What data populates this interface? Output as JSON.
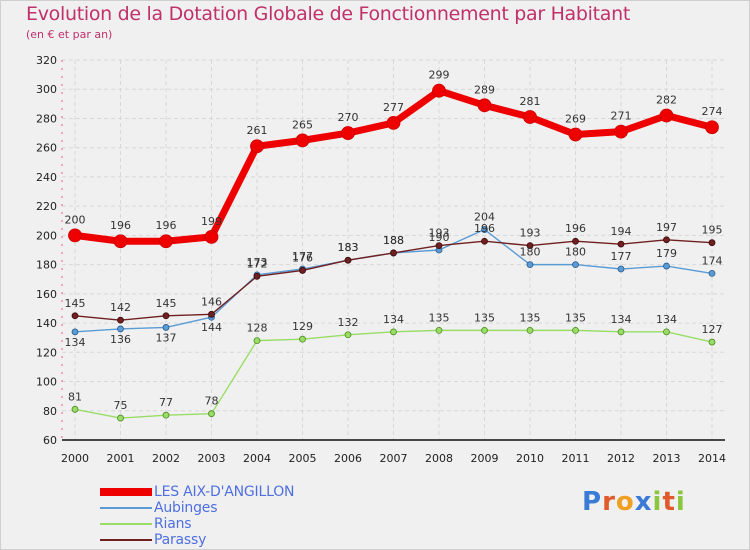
{
  "title": "Evolution de la Dotation Globale de Fonctionnement par Habitant",
  "subtitle": "(en € et par an)",
  "logo": "Proxiti",
  "chart_data": {
    "type": "line",
    "title": "Evolution de la Dotation Globale de Fonctionnement par Habitant",
    "subtitle": "(en € et par an)",
    "x": [
      "2000",
      "2001",
      "2002",
      "2003",
      "2004",
      "2005",
      "2006",
      "2007",
      "2008",
      "2009",
      "2010",
      "2011",
      "2012",
      "2013",
      "2014"
    ],
    "ylim": [
      60,
      320
    ],
    "yticks": [
      60,
      80,
      100,
      120,
      140,
      160,
      180,
      200,
      220,
      240,
      260,
      280,
      300,
      320
    ],
    "grid": true,
    "legend_position": "bottom-left",
    "series": [
      {
        "name": "LES AIX-D'ANGILLON",
        "color": "#ee0000",
        "values": [
          200,
          196,
          196,
          199,
          261,
          265,
          270,
          277,
          299,
          289,
          281,
          269,
          271,
          282,
          274
        ]
      },
      {
        "name": "Aubinges",
        "color": "#5b9bd5",
        "values": [
          134,
          136,
          137,
          144,
          173,
          177,
          183,
          188,
          190,
          204,
          180,
          180,
          177,
          179,
          174
        ]
      },
      {
        "name": "Rians",
        "color": "#99dd66",
        "values": [
          81,
          75,
          77,
          78,
          128,
          129,
          132,
          134,
          135,
          135,
          135,
          135,
          134,
          134,
          127
        ]
      },
      {
        "name": "Parassy",
        "color": "#702020",
        "values": [
          145,
          142,
          145,
          146,
          172,
          176,
          183,
          188,
          193,
          196,
          193,
          196,
          194,
          197,
          195
        ]
      }
    ]
  }
}
